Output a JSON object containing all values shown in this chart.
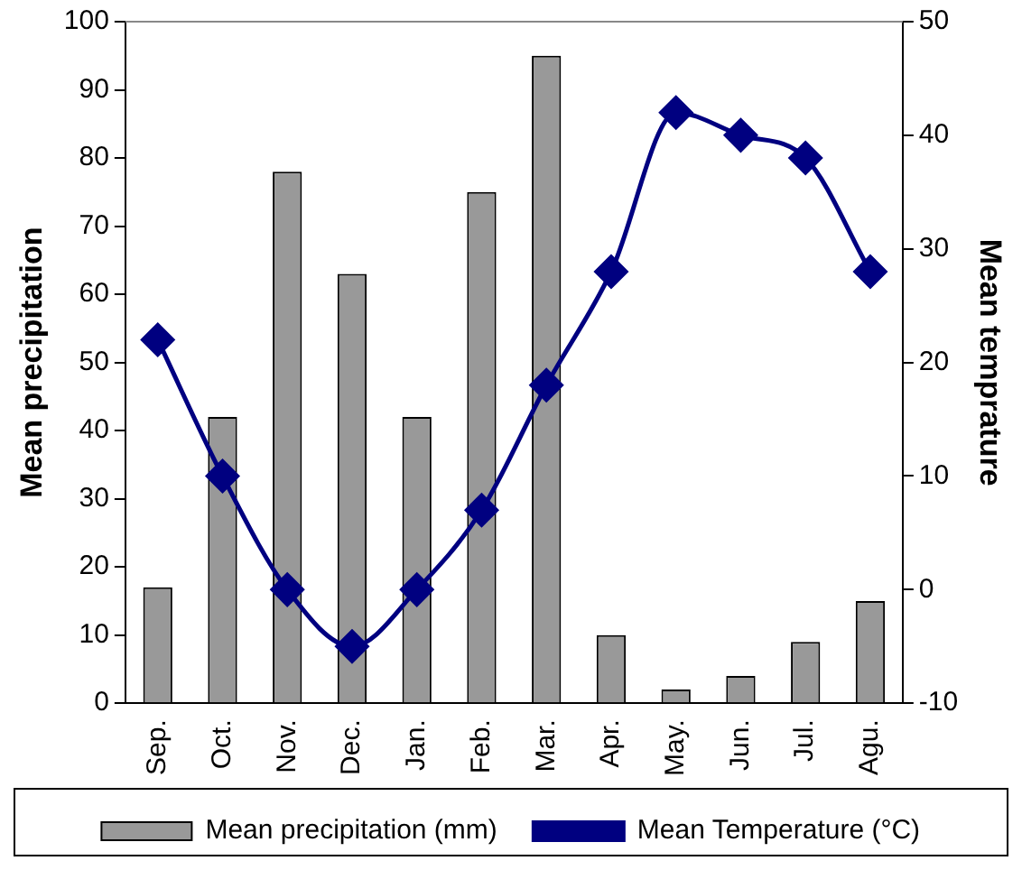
{
  "chart_data": {
    "type": "bar",
    "categories": [
      "Sep.",
      "Oct.",
      "Nov.",
      "Dec.",
      "Jan.",
      "Feb.",
      "Mar.",
      "Apr.",
      "May.",
      "Jun.",
      "Jul.",
      "Agu."
    ],
    "ylabel": "Mean precipitation",
    "y2label": "Mean temprature",
    "ylim": [
      0,
      100
    ],
    "yticks": [
      0,
      10,
      20,
      30,
      40,
      50,
      60,
      70,
      80,
      90,
      100
    ],
    "y2lim": [
      -10,
      50
    ],
    "y2ticks": [
      -10,
      0,
      10,
      20,
      30,
      40,
      50
    ],
    "series": [
      {
        "name": "Mean precipitation (mm)",
        "color": "#999999",
        "values": [
          17,
          42,
          78,
          63,
          42,
          75,
          95,
          10,
          2,
          4,
          9,
          15
        ]
      },
      {
        "name": "Mean Temperature (°C)",
        "type": "line",
        "axis": "y2",
        "color": "#000080",
        "values": [
          22,
          10,
          0,
          -5,
          0,
          7,
          18,
          28,
          42,
          40,
          38,
          28
        ]
      }
    ],
    "marker": "diamond",
    "grid": false,
    "legend": "bottom"
  }
}
